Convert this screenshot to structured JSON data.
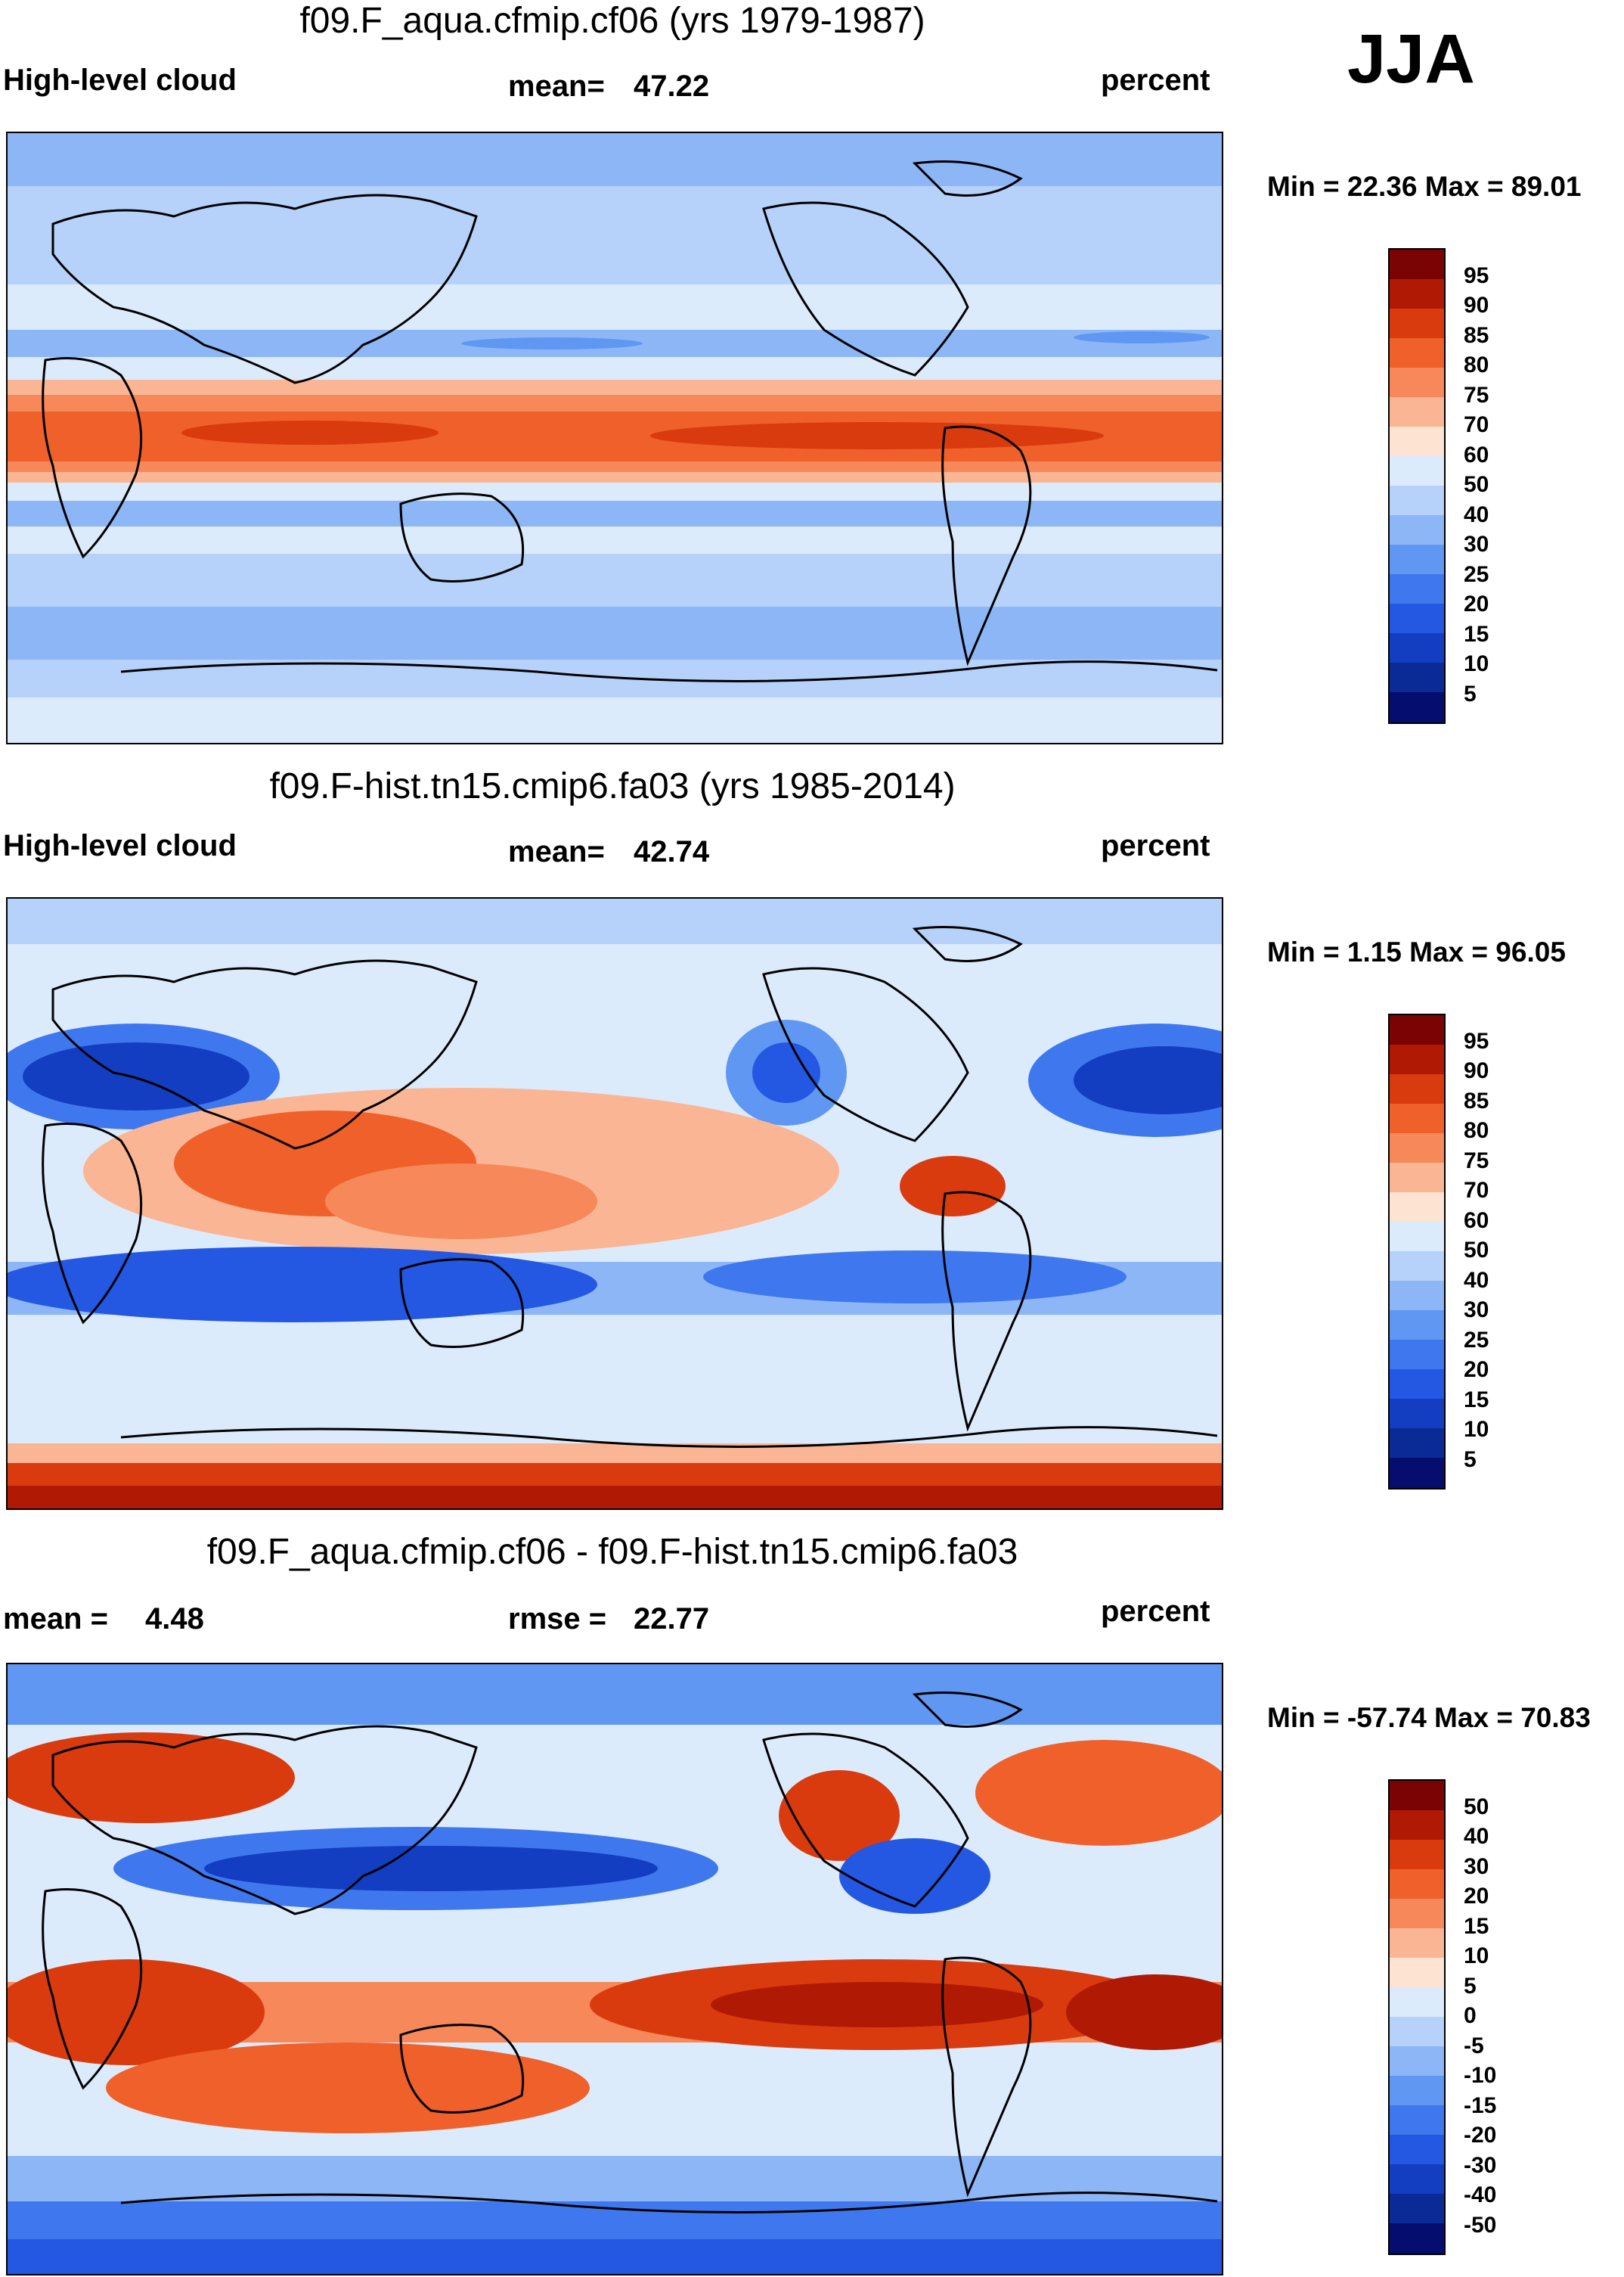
{
  "season": "JJA",
  "units": "percent",
  "panels": [
    {
      "title": "f09.F_aqua.cfmip.cf06 (yrs 1979-1987)",
      "variable": "High-level cloud",
      "stat_label": "mean=",
      "stat_value": "47.22",
      "units": "percent",
      "minmax": "Min =  22.36 Max =  89.01"
    },
    {
      "title": "f09.F-hist.tn15.cmip6.fa03 (yrs 1985-2014)",
      "variable": "High-level cloud",
      "stat_label": "mean=",
      "stat_value": "42.74",
      "units": "percent",
      "minmax": "Min =   1.15 Max =  96.05"
    },
    {
      "title": "f09.F_aqua.cfmip.cf06 - f09.F-hist.tn15.cmip6.fa03",
      "mean_label": "mean =",
      "mean_value": "4.48",
      "rmse_label": "rmse =",
      "rmse_value": "22.77",
      "units": "percent",
      "minmax": "Min = -57.74 Max =  70.83"
    }
  ],
  "chart_data": [
    {
      "type": "heatmap",
      "title": "f09.F_aqua.cfmip.cf06 (yrs 1979-1987)",
      "field": "High-level cloud",
      "units": "percent",
      "mean": 47.22,
      "min": 22.36,
      "max": 89.01,
      "lon_range": [
        0,
        360
      ],
      "lat_range": [
        -90,
        90
      ],
      "contour_levels": [
        95,
        90,
        85,
        80,
        75,
        70,
        60,
        50,
        40,
        30,
        25,
        20,
        15,
        10,
        5
      ],
      "colors": [
        "#7a0403",
        "#b01a04",
        "#d93b0e",
        "#f0602a",
        "#f6885a",
        "#fab694",
        "#fde3d2",
        "#dcebfc",
        "#b6d2fa",
        "#8db6f6",
        "#6097f2",
        "#3f78ee",
        "#2458e3",
        "#133ec1",
        "#0a2a96",
        "#050d6e"
      ],
      "structure": "zonal bands: high cloud ~75-85% near equator, ~30% at 20-30 deg, ~40% mid-latitudes"
    },
    {
      "type": "heatmap",
      "title": "f09.F-hist.tn15.cmip6.fa03 (yrs 1985-2014)",
      "field": "High-level cloud",
      "units": "percent",
      "mean": 42.74,
      "min": 1.15,
      "max": 96.05,
      "lon_range": [
        0,
        360
      ],
      "lat_range": [
        -90,
        90
      ],
      "contour_levels": [
        95,
        90,
        85,
        80,
        75,
        70,
        60,
        50,
        40,
        30,
        25,
        20,
        15,
        10,
        5
      ],
      "colors": [
        "#7a0403",
        "#b01a04",
        "#d93b0e",
        "#f0602a",
        "#f6885a",
        "#fab694",
        "#fde3d2",
        "#dcebfc",
        "#b6d2fa",
        "#8db6f6",
        "#6097f2",
        "#3f78ee",
        "#2458e3",
        "#133ec1",
        "#0a2a96",
        "#050d6e"
      ]
    },
    {
      "type": "heatmap",
      "title": "f09.F_aqua.cfmip.cf06 - f09.F-hist.tn15.cmip6.fa03",
      "field": "difference",
      "units": "percent",
      "mean": 4.48,
      "rmse": 22.77,
      "min": -57.74,
      "max": 70.83,
      "lon_range": [
        0,
        360
      ],
      "lat_range": [
        -90,
        90
      ],
      "contour_levels": [
        50,
        40,
        30,
        20,
        15,
        10,
        5,
        0,
        -5,
        -10,
        -15,
        -20,
        -30,
        -40,
        -50
      ],
      "colors": [
        "#7a0403",
        "#b01a04",
        "#d93b0e",
        "#f0602a",
        "#f6885a",
        "#fab694",
        "#fde3d2",
        "#dcebfc",
        "#b6d2fa",
        "#8db6f6",
        "#6097f2",
        "#3f78ee",
        "#2458e3",
        "#133ec1",
        "#0a2a96",
        "#050d6e"
      ]
    }
  ]
}
